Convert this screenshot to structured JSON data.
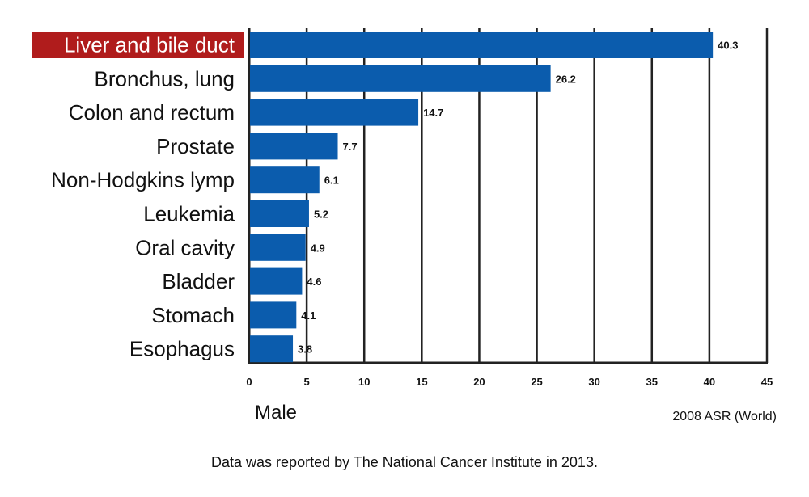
{
  "chart_data": {
    "type": "bar",
    "orientation": "horizontal",
    "categories": [
      "Liver and bile duct",
      "Bronchus, lung",
      "Colon and rectum",
      "Prostate",
      "Non-Hodgkins lymp",
      "Leukemia",
      "Oral cavity",
      "Bladder",
      "Stomach",
      "Esophagus"
    ],
    "values": [
      40.3,
      26.2,
      14.7,
      7.7,
      6.1,
      5.2,
      4.9,
      4.6,
      4.1,
      3.8
    ],
    "value_labels": [
      "40.3",
      "26.2",
      "14.7",
      "7.7",
      "6.1",
      "5.2",
      "4.9",
      "4.6",
      "4.1",
      "3.8"
    ],
    "xlim": [
      0,
      45
    ],
    "xticks": [
      0,
      5,
      10,
      15,
      20,
      25,
      30,
      35,
      40,
      45
    ],
    "grid": "vertical",
    "highlighted_category": "Liver and bile duct",
    "group_label": "Male",
    "unit_label": "2008 ASR (World)",
    "note": "Data was reported by The National Cancer Institute in 2013.",
    "colors": {
      "bar": "#0b5cad",
      "highlight_bg": "#b01c1c",
      "highlight_text": "#ffffff",
      "grid": "#222222"
    }
  }
}
